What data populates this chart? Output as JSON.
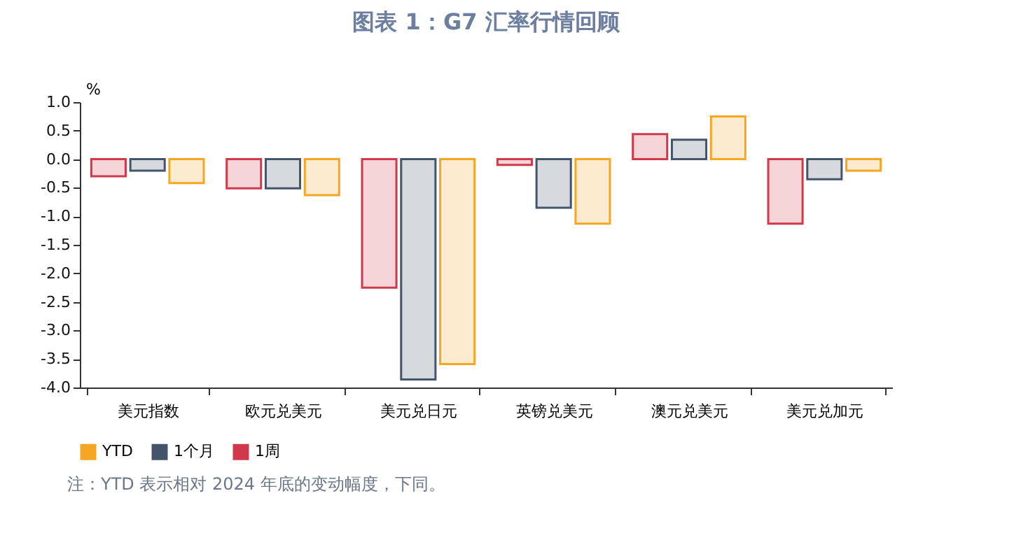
{
  "chart_data": {
    "type": "bar",
    "title": "图表 1：G7 汇率行情回顾",
    "categories": [
      "美元指数",
      "欧元兑美元",
      "美元兑日元",
      "英镑兑美元",
      "澳元兑美元",
      "美元兑加元"
    ],
    "series": [
      {
        "name": "1周",
        "color": "#d0394b",
        "values": [
          -0.3,
          -0.51,
          -2.25,
          -0.1,
          0.44,
          -1.13
        ]
      },
      {
        "name": "1个月",
        "color": "#44546a",
        "values": [
          -0.2,
          -0.51,
          -3.86,
          -0.85,
          0.34,
          -0.35
        ]
      },
      {
        "name": "YTD",
        "color": "#f5a623",
        "values": [
          -0.42,
          -0.63,
          -3.59,
          -1.13,
          0.75,
          -0.2
        ]
      }
    ],
    "ylabel": "%",
    "ylim": [
      -4.0,
      1.0
    ],
    "yticks": [
      {
        "value": -4,
        "label": "-4.0"
      },
      {
        "value": -3.5,
        "label": "-3.5"
      },
      {
        "value": -3,
        "label": "-3.0"
      },
      {
        "value": -2.5,
        "label": "-2.5"
      },
      {
        "value": -2,
        "label": "-2.0"
      },
      {
        "value": -1.5,
        "label": "-1.5"
      },
      {
        "value": -1,
        "label": "-1.0"
      },
      {
        "value": -0.5,
        "label": "-0.5"
      },
      {
        "value": 0,
        "label": "0.0"
      },
      {
        "value": 0.5,
        "label": "0.5"
      },
      {
        "value": 1,
        "label": "1.0"
      }
    ],
    "grid": false,
    "legend": "bottom",
    "annotations": [
      "注：YTD 表示相对 2024 年底的变动幅度，下同。"
    ]
  }
}
